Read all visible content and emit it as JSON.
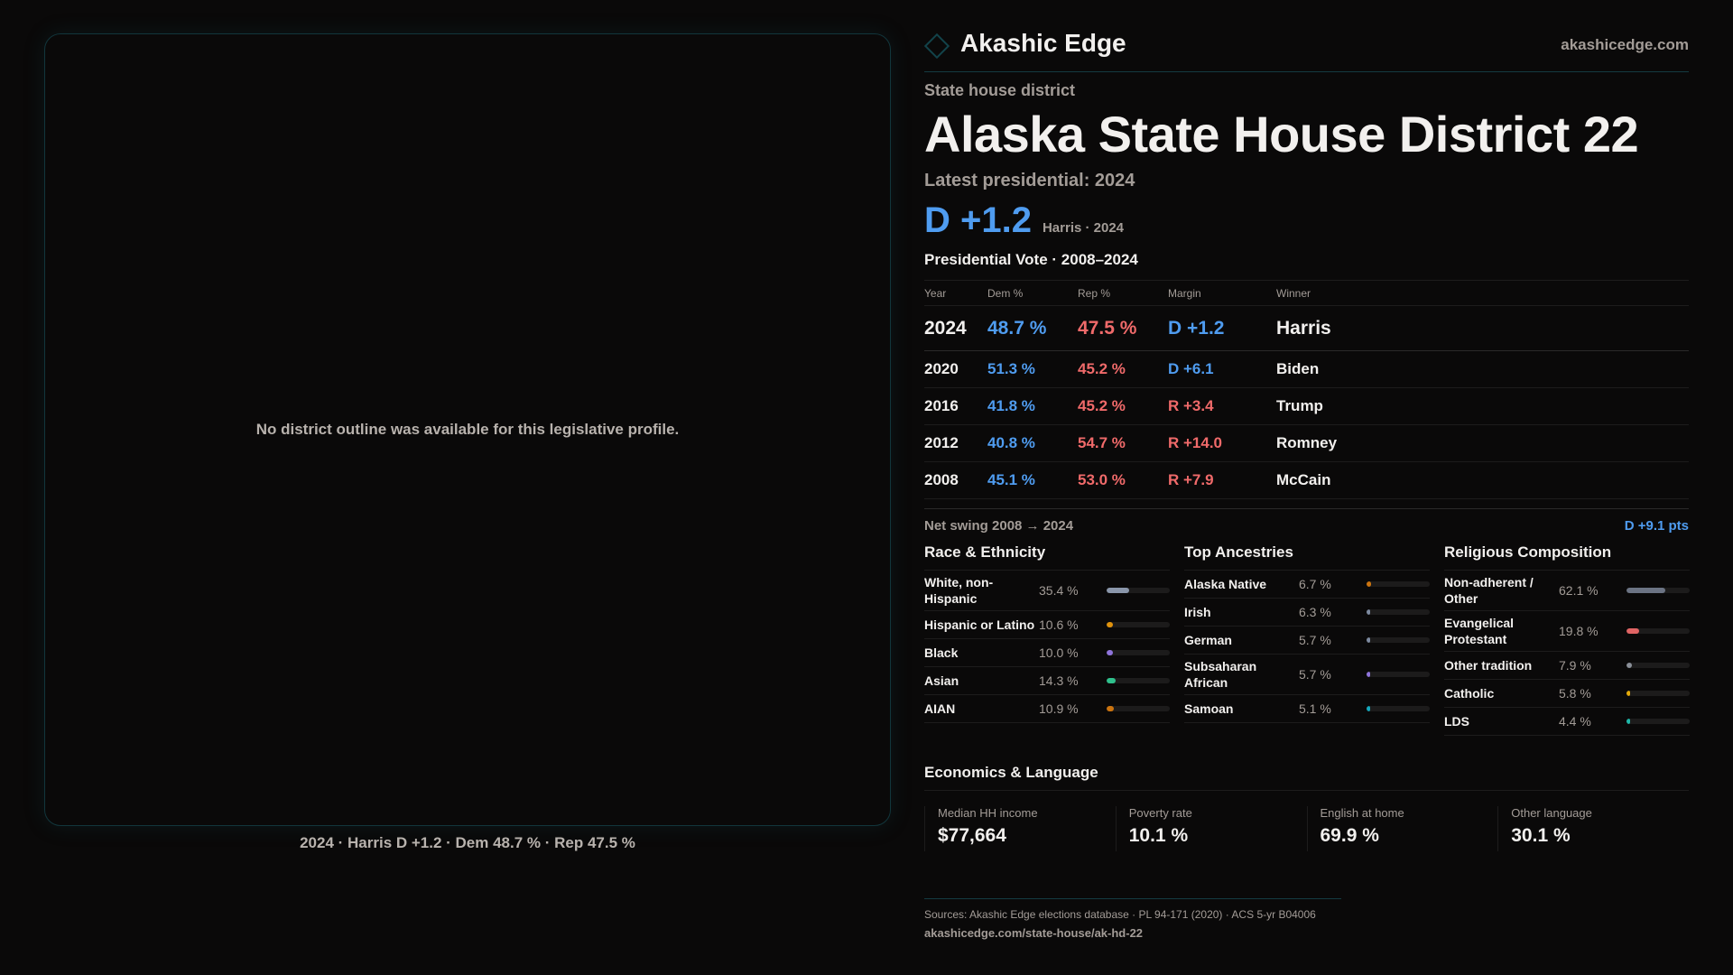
{
  "map": {
    "empty_message": "No district outline was available for this legislative profile.",
    "caption": "2024 · Harris D +1.2 · Dem 48.7 % · Rep 47.5 %"
  },
  "header": {
    "brand": "Akashic Edge",
    "site": "akashicedge.com",
    "logo_icon": "diamond-icon"
  },
  "district": {
    "kind": "State house district",
    "title": "Alaska State House District 22",
    "latest_label": "Latest presidential: 2024",
    "margin": "D +1.2",
    "margin_sub": "Harris · 2024"
  },
  "vote": {
    "heading": "Presidential Vote · 2008–2024",
    "columns": [
      "Year",
      "Dem %",
      "Rep %",
      "Margin",
      "Winner"
    ],
    "rows": [
      {
        "year": "2024",
        "dem": "48.7 %",
        "rep": "47.5 %",
        "margin": "D +1.2",
        "party": "D",
        "winner": "Harris"
      },
      {
        "year": "2020",
        "dem": "51.3 %",
        "rep": "45.2 %",
        "margin": "D +6.1",
        "party": "D",
        "winner": "Biden"
      },
      {
        "year": "2016",
        "dem": "41.8 %",
        "rep": "45.2 %",
        "margin": "R +3.4",
        "party": "R",
        "winner": "Trump"
      },
      {
        "year": "2012",
        "dem": "40.8 %",
        "rep": "54.7 %",
        "margin": "R +14.0",
        "party": "R",
        "winner": "Romney"
      },
      {
        "year": "2008",
        "dem": "45.1 %",
        "rep": "53.0 %",
        "margin": "R +7.9",
        "party": "R",
        "winner": "McCain"
      }
    ],
    "swing_label": "Net swing 2008 → 2024",
    "swing_value": "D +9.1 pts"
  },
  "colors": {
    "dem": "#4f9cf0",
    "rep": "#f06a6a"
  },
  "demographics": [
    {
      "title": "Race & Ethnicity",
      "items": [
        {
          "label": "White, non-Hispanic",
          "value": "35.4 %",
          "pct": 35.4,
          "color": "#8a96aa"
        },
        {
          "label": "Hispanic or Latino",
          "value": "10.6 %",
          "pct": 10.6,
          "color": "#e0920c"
        },
        {
          "label": "Black",
          "value": "10.0 %",
          "pct": 10.0,
          "color": "#8f74db"
        },
        {
          "label": "Asian",
          "value": "14.3 %",
          "pct": 14.3,
          "color": "#2fc08c"
        },
        {
          "label": "AIAN",
          "value": "10.9 %",
          "pct": 10.9,
          "color": "#cc740f"
        }
      ]
    },
    {
      "title": "Top Ancestries",
      "items": [
        {
          "label": "Alaska Native",
          "value": "6.7 %",
          "pct": 6.7,
          "color": "#cc740f"
        },
        {
          "label": "Irish",
          "value": "6.3 %",
          "pct": 6.3,
          "color": "#7d8aa0"
        },
        {
          "label": "German",
          "value": "5.7 %",
          "pct": 5.7,
          "color": "#7d8aa0"
        },
        {
          "label": "Subsaharan African",
          "value": "5.7 %",
          "pct": 5.7,
          "color": "#8f74db"
        },
        {
          "label": "Samoan",
          "value": "5.1 %",
          "pct": 5.1,
          "color": "#14a8bd"
        }
      ]
    },
    {
      "title": "Religious Composition",
      "items": [
        {
          "label": "Non-adherent / Other",
          "value": "62.1 %",
          "pct": 62.1,
          "color": "#6b7383"
        },
        {
          "label": "Evangelical Protestant",
          "value": "19.8 %",
          "pct": 19.8,
          "color": "#e06464"
        },
        {
          "label": "Other tradition",
          "value": "7.9 %",
          "pct": 7.9,
          "color": "#8a8f98"
        },
        {
          "label": "Catholic",
          "value": "5.8 %",
          "pct": 5.8,
          "color": "#e4aa0a"
        },
        {
          "label": "LDS",
          "value": "4.4 %",
          "pct": 4.4,
          "color": "#1fb8aa"
        }
      ]
    }
  ],
  "economics": {
    "title": "Economics & Language",
    "cards": [
      {
        "label": "Median HH income",
        "value": "$77,664"
      },
      {
        "label": "Poverty rate",
        "value": "10.1 %"
      },
      {
        "label": "English at home",
        "value": "69.9 %"
      },
      {
        "label": "Other language",
        "value": "30.1 %"
      }
    ]
  },
  "footer": {
    "sources": "Sources: Akashic Edge elections database · PL 94-171 (2020) · ACS 5-yr B04006",
    "url": "akashicedge.com/state-house/ak-hd-22"
  }
}
